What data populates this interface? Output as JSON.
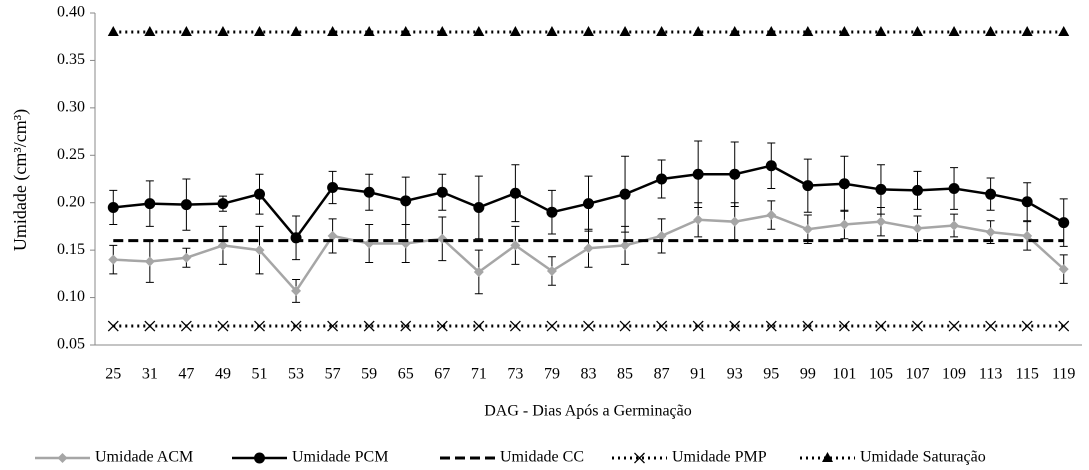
{
  "chart_data": {
    "type": "line",
    "y_label": "Umidade (cm³/cm³)",
    "x_label": "DAG - Dias Após a Germinação",
    "categories": [
      "25",
      "31",
      "47",
      "49",
      "51",
      "53",
      "57",
      "59",
      "65",
      "67",
      "71",
      "73",
      "79",
      "83",
      "85",
      "87",
      "91",
      "93",
      "95",
      "99",
      "101",
      "105",
      "107",
      "109",
      "113",
      "115",
      "119"
    ],
    "ylim": [
      0.05,
      0.4
    ],
    "yticks": [
      0.05,
      {
        "value": 0.1,
        "label": "0.10"
      },
      0.15,
      {
        "value": 0.2,
        "label": "0.20"
      },
      0.25,
      {
        "value": 0.3,
        "label": "0.30"
      },
      0.35,
      {
        "value": 0.4,
        "label": "0.40"
      }
    ],
    "legend": "bottom",
    "series": [
      {
        "name": "Umidade ACM",
        "color": "#a6a6a6",
        "marker": "diamond",
        "dash": "solid",
        "values": [
          0.14,
          0.138,
          0.142,
          0.155,
          0.15,
          0.107,
          0.165,
          0.157,
          0.157,
          0.162,
          0.127,
          0.155,
          0.128,
          0.152,
          0.155,
          0.165,
          0.182,
          0.18,
          0.187,
          0.172,
          0.177,
          0.18,
          0.173,
          0.176,
          0.169,
          0.165,
          0.13
        ],
        "errors": [
          0.015,
          0.022,
          0.01,
          0.02,
          0.025,
          0.012,
          0.018,
          0.02,
          0.02,
          0.023,
          0.023,
          0.02,
          0.015,
          0.02,
          0.02,
          0.018,
          0.018,
          0.02,
          0.015,
          0.015,
          0.015,
          0.015,
          0.013,
          0.012,
          0.012,
          0.015,
          0.015
        ]
      },
      {
        "name": "Umidade PCM",
        "color": "#000000",
        "marker": "circle",
        "dash": "solid",
        "values": [
          0.195,
          0.199,
          0.198,
          0.199,
          0.209,
          0.163,
          0.216,
          0.211,
          0.202,
          0.211,
          0.195,
          0.21,
          0.19,
          0.199,
          0.209,
          0.225,
          0.23,
          0.23,
          0.239,
          0.218,
          0.22,
          0.214,
          0.213,
          0.215,
          0.209,
          0.201,
          0.179
        ],
        "errors": [
          0.018,
          0.024,
          0.027,
          0.008,
          0.021,
          0.023,
          0.017,
          0.019,
          0.025,
          0.019,
          0.033,
          0.03,
          0.023,
          0.029,
          0.04,
          0.02,
          0.035,
          0.034,
          0.024,
          0.028,
          0.029,
          0.026,
          0.02,
          0.022,
          0.017,
          0.02,
          0.025
        ]
      },
      {
        "name": "Umidade CC",
        "color": "#000000",
        "marker": "none",
        "dash": "dashed",
        "values": [
          0.16,
          0.16,
          0.16,
          0.16,
          0.16,
          0.16,
          0.16,
          0.16,
          0.16,
          0.16,
          0.16,
          0.16,
          0.16,
          0.16,
          0.16,
          0.16,
          0.16,
          0.16,
          0.16,
          0.16,
          0.16,
          0.16,
          0.16,
          0.16,
          0.16,
          0.16,
          0.16
        ]
      },
      {
        "name": "Umidade PMP",
        "color": "#000000",
        "marker": "cross",
        "dash": "dotted",
        "values": [
          0.07,
          0.07,
          0.07,
          0.07,
          0.07,
          0.07,
          0.07,
          0.07,
          0.07,
          0.07,
          0.07,
          0.07,
          0.07,
          0.07,
          0.07,
          0.07,
          0.07,
          0.07,
          0.07,
          0.07,
          0.07,
          0.07,
          0.07,
          0.07,
          0.07,
          0.07,
          0.07
        ]
      },
      {
        "name": "Umidade Saturação",
        "color": "#000000",
        "marker": "triangle",
        "dash": "dotted",
        "values": [
          0.38,
          0.38,
          0.38,
          0.38,
          0.38,
          0.38,
          0.38,
          0.38,
          0.38,
          0.38,
          0.38,
          0.38,
          0.38,
          0.38,
          0.38,
          0.38,
          0.38,
          0.38,
          0.38,
          0.38,
          0.38,
          0.38,
          0.38,
          0.38,
          0.38,
          0.38,
          0.38
        ]
      }
    ]
  }
}
